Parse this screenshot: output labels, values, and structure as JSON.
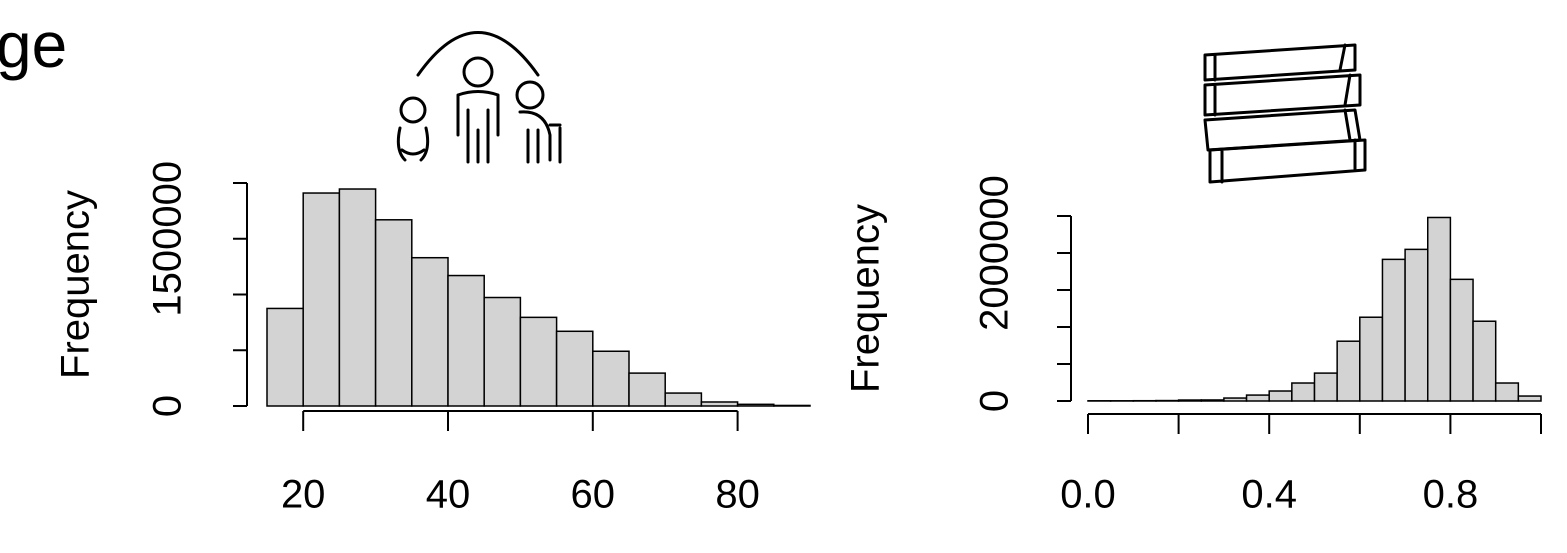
{
  "chart_data": [
    {
      "type": "histogram",
      "title": "ge",
      "y_label": "Frequency",
      "bins": [
        15,
        20,
        25,
        30,
        35,
        40,
        45,
        50,
        55,
        60,
        65,
        70,
        75,
        80,
        85,
        90
      ],
      "values": [
        875000,
        1910000,
        1946000,
        1670000,
        1330000,
        1170000,
        973000,
        795000,
        670000,
        491000,
        295000,
        116000,
        36000,
        15000,
        5000
      ],
      "color": "#d3d3d3",
      "xlim": [
        15,
        90
      ],
      "xticks": [
        20,
        40,
        60,
        80
      ],
      "ylim": [
        0,
        2000000
      ],
      "yticks": [
        0,
        {
          "value": 500000,
          "label": null
        },
        {
          "value": 1000000,
          "label": null
        },
        1500000,
        {
          "value": 2000000,
          "label": null
        }
      ]
    },
    {
      "type": "histogram",
      "y_label": "Frequency",
      "bins": [
        0,
        0.05,
        0.1,
        0.15,
        0.2,
        0.25,
        0.3,
        0.35,
        0.4,
        0.45,
        0.5,
        0.55,
        0.6,
        0.65,
        0.7,
        0.75,
        0.8,
        0.85,
        0.9,
        0.95,
        1.0
      ],
      "values": [
        3000,
        3000,
        4000,
        6000,
        13000,
        14000,
        40000,
        80000,
        135000,
        243000,
        377000,
        808000,
        1132000,
        1914000,
        2049000,
        2480000,
        1644000,
        1078000,
        243000,
        67000
      ],
      "color": "#d3d3d3",
      "xlim": [
        0,
        1
      ],
      "xticks": [
        {
          "value": 0,
          "label": "0.0"
        },
        {
          "value": 0.2,
          "label": null
        },
        0.4,
        {
          "value": 0.6,
          "label": null
        },
        0.8,
        {
          "value": 1,
          "label": null
        }
      ],
      "ylim": [
        0,
        2500000
      ],
      "yticks": [
        0,
        {
          "value": 500000,
          "label": null
        },
        {
          "value": 1000000,
          "label": null
        },
        {
          "value": 1500000,
          "label": null
        },
        2000000,
        {
          "value": 2500000,
          "label": null
        }
      ]
    }
  ]
}
